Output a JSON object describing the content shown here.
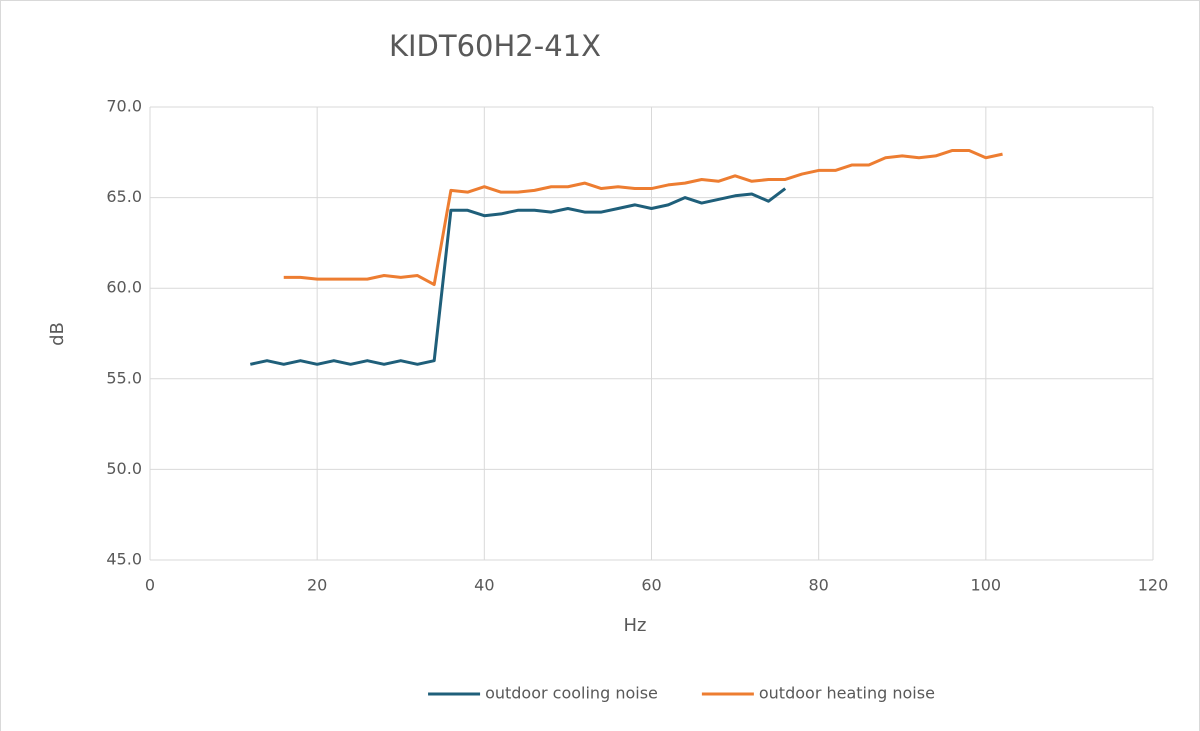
{
  "chart_data": {
    "type": "line",
    "title": "KIDT60H2-41X",
    "x_label": "Hz",
    "y_label": "dB",
    "xlim": [
      0,
      120
    ],
    "xticks": [
      0,
      20,
      40,
      60,
      80,
      100,
      120
    ],
    "ylim": [
      45,
      70
    ],
    "yticks": [
      {
        "value": 45,
        "label": "45.0"
      },
      {
        "value": 50,
        "label": "50.0"
      },
      {
        "value": 55,
        "label": "55.0"
      },
      {
        "value": 60,
        "label": "60.0"
      },
      {
        "value": 65,
        "label": "65.0"
      },
      {
        "value": 70,
        "label": "70.0"
      }
    ],
    "grid": true,
    "legend": "bottom",
    "series": [
      {
        "name": "outdoor cooling noise",
        "color": "#1f5f7a",
        "x": [
          12,
          14,
          16,
          18,
          20,
          22,
          24,
          26,
          28,
          30,
          32,
          34,
          36,
          38,
          40,
          42,
          44,
          46,
          48,
          50,
          52,
          54,
          56,
          58,
          60,
          62,
          64,
          66,
          68,
          70,
          72,
          74,
          76
        ],
        "values": [
          55.8,
          56.0,
          55.8,
          56.0,
          55.8,
          56.0,
          55.8,
          56.0,
          55.8,
          56.0,
          55.8,
          56.0,
          64.3,
          64.3,
          64.0,
          64.1,
          64.3,
          64.3,
          64.2,
          64.4,
          64.2,
          64.2,
          64.4,
          64.6,
          64.4,
          64.6,
          65.0,
          64.7,
          64.9,
          65.1,
          65.2,
          64.8,
          65.5
        ]
      },
      {
        "name": "outdoor heating noise",
        "color": "#ed7d31",
        "x": [
          16,
          18,
          20,
          22,
          24,
          26,
          28,
          30,
          32,
          34,
          36,
          38,
          40,
          42,
          44,
          46,
          48,
          50,
          52,
          54,
          56,
          58,
          60,
          62,
          64,
          66,
          68,
          70,
          72,
          74,
          76,
          78,
          80,
          82,
          84,
          86,
          88,
          90,
          92,
          94,
          96,
          98,
          100,
          102
        ],
        "values": [
          60.6,
          60.6,
          60.5,
          60.5,
          60.5,
          60.5,
          60.7,
          60.6,
          60.7,
          60.2,
          65.4,
          65.3,
          65.6,
          65.3,
          65.3,
          65.4,
          65.6,
          65.6,
          65.8,
          65.5,
          65.6,
          65.5,
          65.5,
          65.7,
          65.8,
          66.0,
          65.9,
          66.2,
          65.9,
          66.0,
          66.0,
          66.3,
          66.5,
          66.5,
          66.8,
          66.8,
          67.2,
          67.3,
          67.2,
          67.3,
          67.6,
          67.6,
          67.2,
          67.4
        ]
      }
    ]
  }
}
